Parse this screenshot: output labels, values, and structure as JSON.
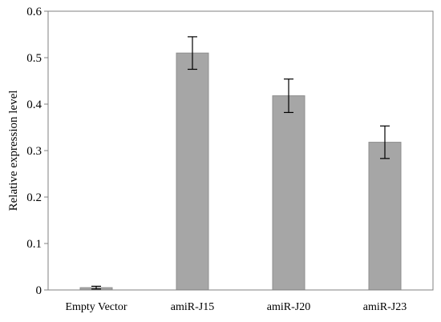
{
  "chart_data": {
    "type": "bar",
    "title": "",
    "xlabel": "",
    "ylabel": "Relative  expression level",
    "categories": [
      "Empty Vector",
      "amiR-J15",
      "amiR-J20",
      "amiR-J23"
    ],
    "values": [
      0.005,
      0.51,
      0.418,
      0.318
    ],
    "errors": [
      0.003,
      0.035,
      0.036,
      0.035
    ],
    "ylim": [
      0,
      0.6
    ],
    "yticks": [
      0,
      0.1,
      0.2,
      0.3,
      0.4,
      0.5,
      0.6
    ],
    "ytick_labels": [
      "0",
      "0.1",
      "0.2",
      "0.3",
      "0.4",
      "0.5",
      "0.6"
    ],
    "grid": false,
    "legend": "none",
    "colors": {
      "bar_fill": "#a6a6a6",
      "bar_stroke": "#8f8f8f",
      "axis": "#808080",
      "error_bar": "#000000"
    }
  }
}
